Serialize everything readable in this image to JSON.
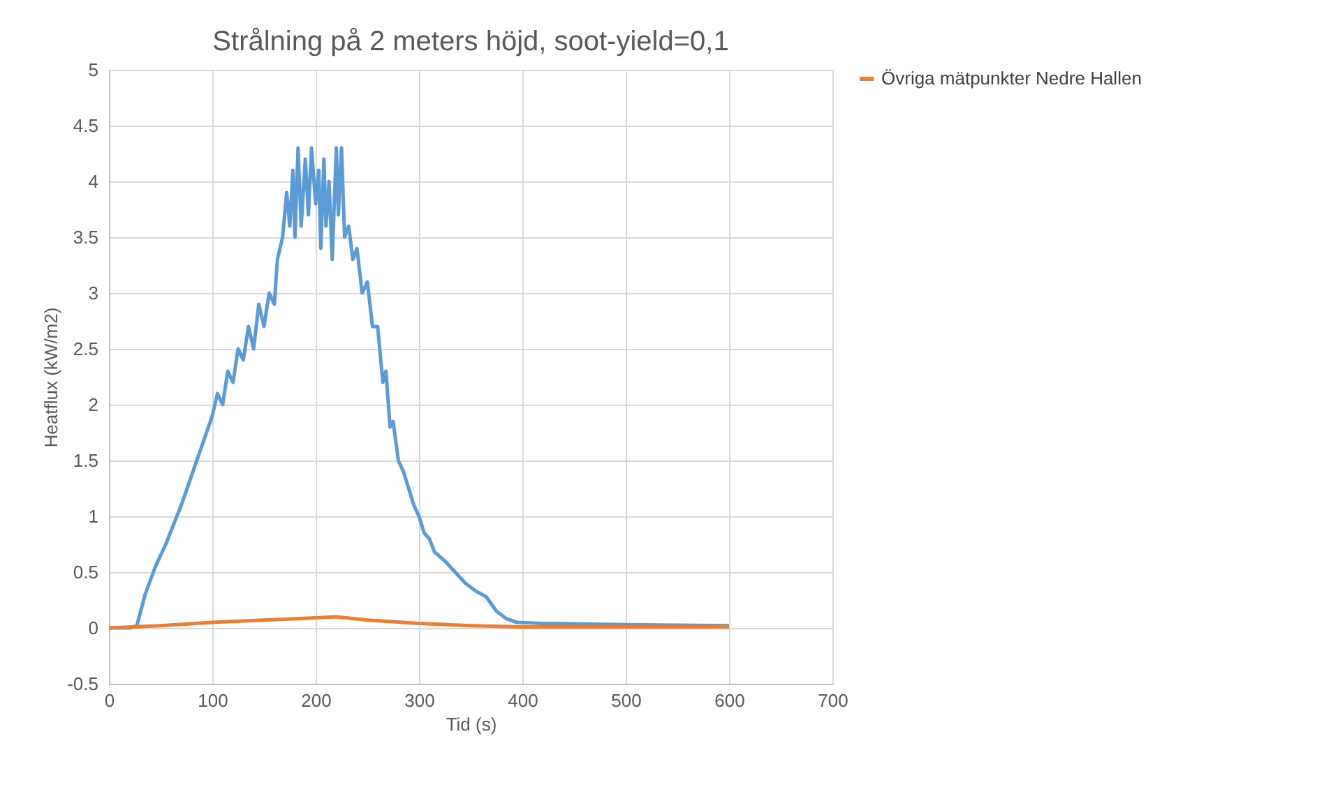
{
  "chart_data": {
    "type": "line",
    "title": "Strålning på 2 meters höjd, soot-yield=0,1",
    "xlabel": "Tid (s)",
    "ylabel": "Heatflux (kW/m2)",
    "xlim": [
      0,
      700
    ],
    "xticks": [
      0,
      100,
      200,
      300,
      400,
      500,
      600,
      700
    ],
    "ylim": [
      -0.5,
      5
    ],
    "yticks": [
      -0.5,
      0,
      0.5,
      1,
      1.5,
      2,
      2.5,
      3,
      3.5,
      4,
      4.5,
      5
    ],
    "grid": true,
    "legend": "right",
    "line_style": "solid",
    "marker": "none",
    "series": [
      {
        "color": "#5b9bd5",
        "x": [
          0,
          20,
          27,
          35,
          45,
          55,
          70,
          85,
          100,
          105,
          110,
          115,
          120,
          125,
          130,
          135,
          140,
          145,
          150,
          155,
          160,
          163,
          168,
          172,
          175,
          178,
          180,
          183,
          186,
          190,
          193,
          196,
          200,
          203,
          205,
          208,
          210,
          213,
          216,
          220,
          222,
          225,
          228,
          232,
          236,
          240,
          245,
          250,
          255,
          260,
          265,
          268,
          272,
          275,
          280,
          285,
          290,
          295,
          300,
          305,
          310,
          315,
          325,
          335,
          345,
          355,
          365,
          375,
          385,
          395,
          420,
          500,
          600
        ],
        "values": [
          0,
          0,
          0.02,
          0.3,
          0.55,
          0.75,
          1.1,
          1.5,
          1.9,
          2.1,
          2.0,
          2.3,
          2.2,
          2.5,
          2.4,
          2.7,
          2.5,
          2.9,
          2.7,
          3.0,
          2.9,
          3.3,
          3.5,
          3.9,
          3.6,
          4.1,
          3.5,
          4.3,
          3.6,
          4.2,
          3.7,
          4.3,
          3.8,
          4.1,
          3.4,
          4.2,
          3.6,
          4.0,
          3.3,
          4.3,
          3.7,
          4.3,
          3.5,
          3.6,
          3.3,
          3.4,
          3.0,
          3.1,
          2.7,
          2.7,
          2.2,
          2.3,
          1.8,
          1.85,
          1.5,
          1.4,
          1.25,
          1.1,
          1.0,
          0.85,
          0.8,
          0.68,
          0.6,
          0.5,
          0.4,
          0.33,
          0.28,
          0.15,
          0.08,
          0.05,
          0.04,
          0.03,
          0.02
        ]
      },
      {
        "name": "Övriga mätpunkter Nedre Hallen",
        "color": "#ed7d31",
        "x": [
          0,
          50,
          100,
          150,
          200,
          220,
          250,
          300,
          350,
          400,
          600
        ],
        "values": [
          0,
          0.02,
          0.05,
          0.07,
          0.09,
          0.1,
          0.07,
          0.04,
          0.02,
          0.01,
          0.01
        ]
      }
    ]
  }
}
